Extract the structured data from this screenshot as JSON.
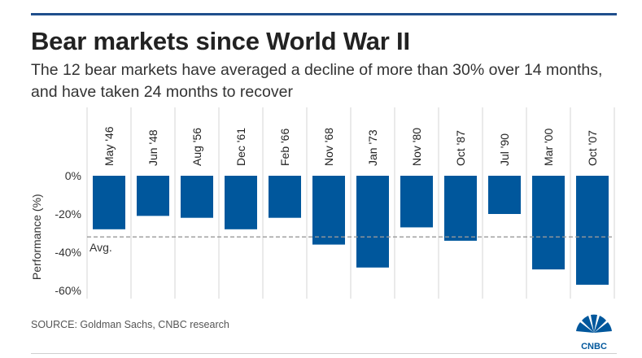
{
  "title": "Bear markets since World War II",
  "subtitle": "The 12 bear markets have averaged a decline of more than 30% over 14 months, and have taken 24 months to recover",
  "source": "SOURCE: Goldman Sachs, CNBC research",
  "logo_text": "CNBC",
  "colors": {
    "bar": "#00579c",
    "accent_rule": "#1f4e8c",
    "average_line": "#999999",
    "grid": "#d4d4d4"
  },
  "chart_data": {
    "type": "bar",
    "categories": [
      "May '46",
      "Jun '48",
      "Aug '56",
      "Dec '61",
      "Feb '66",
      "Nov '68",
      "Jan '73",
      "Nov '80",
      "Oct '87",
      "Jul '90",
      "Mar '00",
      "Oct '07"
    ],
    "values": [
      -28,
      -21,
      -22,
      -28,
      -22,
      -36,
      -48,
      -27,
      -34,
      -20,
      -49,
      -57
    ],
    "ylabel": "Performance (%)",
    "yticks": [
      0,
      -20,
      -40,
      -60
    ],
    "ytick_labels": [
      "0%",
      "-20%",
      "-40%",
      "-60%"
    ],
    "ylim": [
      -64,
      0
    ],
    "average": {
      "value": -32,
      "label": "Avg."
    },
    "grid": "vertical separators",
    "category_label_orientation": "vertical"
  }
}
